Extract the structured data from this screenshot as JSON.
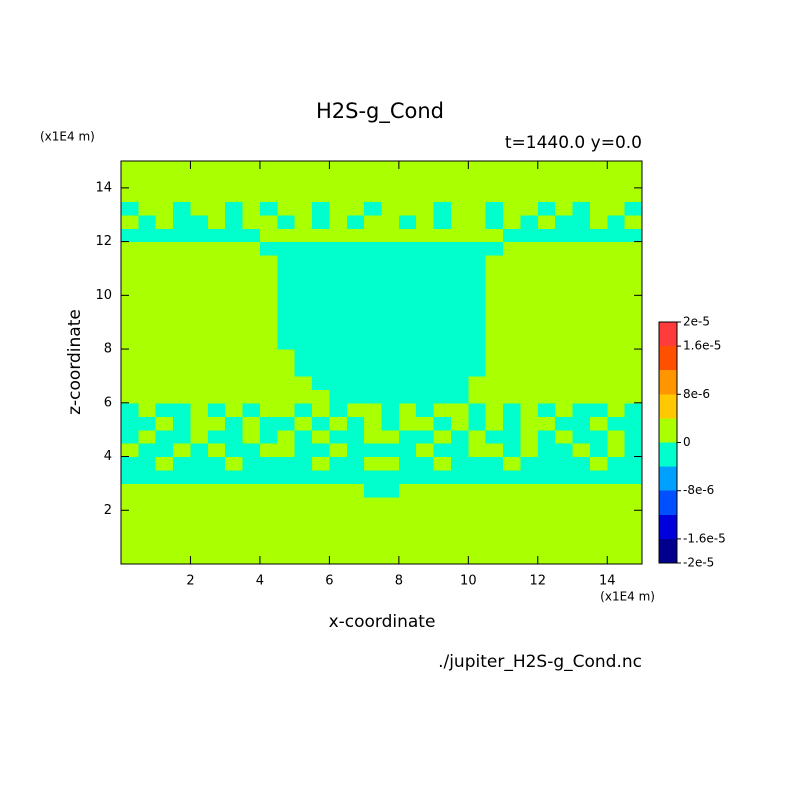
{
  "chart_data": {
    "type": "contour",
    "title": "H2S-g_Cond",
    "subtitle": "t=1440.0 y=0.0",
    "x_label": "x-coordinate",
    "y_label": "z-coordinate",
    "x_unit": "(x1E4 m)",
    "y_unit": "(x1E4 m)",
    "footer": "./jupiter_H2S-g_Cond.nc",
    "xlim": [
      0,
      15
    ],
    "ylim": [
      0,
      15
    ],
    "xticks": [
      2,
      4,
      6,
      8,
      10,
      12,
      14
    ],
    "yticks": [
      2,
      4,
      6,
      8,
      10,
      12,
      14
    ],
    "levels": [
      -2e-05,
      -1.6e-05,
      -1.2e-05,
      -8e-06,
      -4e-06,
      0,
      4e-06,
      8e-06,
      1.2e-05,
      1.6e-05,
      2e-05
    ],
    "colors": [
      "#00008c",
      "#0000dc",
      "#0050ff",
      "#00a0ff",
      "#00ffcc",
      "#aaff00",
      "#ffc800",
      "#ff9600",
      "#ff5000",
      "#ff3c3c"
    ],
    "colorbar_ticks": [
      {
        "value": 2e-05,
        "label": "2e-5"
      },
      {
        "value": 1.6e-05,
        "label": "1.6e-5"
      },
      {
        "value": 8e-06,
        "label": "8e-6"
      },
      0,
      {
        "value": -8e-06,
        "label": "-8e-6"
      },
      {
        "value": -1.6e-05,
        "label": "-1.6e-5"
      },
      {
        "value": -2e-05,
        "label": "-2e-5"
      }
    ],
    "z": [
      [
        0,
        0,
        0,
        0,
        0,
        0,
        0,
        0,
        0,
        0,
        0,
        0,
        0,
        0,
        0,
        0,
        0,
        0,
        0,
        0,
        0,
        0,
        0,
        0,
        0,
        0,
        0,
        0,
        0,
        0
      ],
      [
        0,
        0,
        0,
        0,
        0,
        0,
        0,
        0,
        0,
        0,
        0,
        0,
        0,
        0,
        0,
        0,
        0,
        0,
        0,
        0,
        0,
        0,
        0,
        0,
        0,
        0,
        0,
        0,
        0,
        0
      ],
      [
        0,
        0,
        0,
        0,
        0,
        0,
        0,
        0,
        0,
        0,
        0,
        0,
        0,
        0,
        0,
        0,
        0,
        0,
        0,
        0,
        0,
        0,
        0,
        0,
        0,
        0,
        0,
        0,
        0,
        0
      ],
      [
        0,
        0,
        0,
        0,
        0,
        0,
        0,
        0,
        0,
        0,
        0,
        0,
        0,
        0,
        0,
        0,
        0,
        0,
        0,
        0,
        0,
        0,
        0,
        0,
        0,
        0,
        0,
        0,
        0,
        0
      ],
      [
        0,
        0,
        0,
        0,
        0,
        0,
        0,
        0,
        0,
        0,
        0,
        0,
        0,
        0,
        0,
        0,
        0,
        0,
        0,
        0,
        0,
        0,
        0,
        0,
        0,
        0,
        0,
        0,
        0,
        0
      ],
      [
        0,
        0,
        0,
        0,
        0,
        0,
        0,
        0,
        0,
        0,
        0,
        0,
        0,
        0,
        -2e-06,
        -2e-06,
        0,
        0,
        0,
        0,
        0,
        0,
        0,
        0,
        0,
        0,
        0,
        0,
        0,
        0
      ],
      [
        -2e-06,
        -2e-06,
        -2e-06,
        -2e-06,
        -2e-06,
        -2e-06,
        -2e-06,
        -2e-06,
        -2e-06,
        -2e-06,
        -2e-06,
        -2e-06,
        -2e-06,
        -2e-06,
        -2e-06,
        -2e-06,
        -2e-06,
        -2e-06,
        -2e-06,
        -2e-06,
        -2e-06,
        -2e-06,
        -2e-06,
        -2e-06,
        -2e-06,
        -2e-06,
        -2e-06,
        -2e-06,
        -2e-06,
        -2e-06
      ],
      [
        -2e-06,
        -2e-06,
        0,
        -2e-06,
        -2e-06,
        -2e-06,
        0,
        -2e-06,
        -2e-06,
        -2e-06,
        -2e-06,
        0,
        -2e-06,
        -2e-06,
        0,
        0,
        -2e-06,
        -2e-06,
        0,
        -2e-06,
        -2e-06,
        -2e-06,
        0,
        -2e-06,
        -2e-06,
        -2e-06,
        -2e-06,
        0,
        -2e-06,
        -2e-06
      ],
      [
        0,
        -2e-06,
        -2e-06,
        0,
        -2e-06,
        0,
        -2e-06,
        -2e-06,
        0,
        0,
        -2e-06,
        -2e-06,
        0,
        -2e-06,
        -2e-06,
        -2e-06,
        -2e-06,
        0,
        -2e-06,
        -2e-06,
        0,
        0,
        -2e-06,
        0,
        -2e-06,
        -2e-06,
        0,
        -2e-06,
        0,
        -2e-06
      ],
      [
        -2e-06,
        0,
        -2e-06,
        -2e-06,
        0,
        -2e-06,
        -2e-06,
        0,
        -2e-06,
        0,
        -2e-06,
        0,
        -2e-06,
        -2e-06,
        0,
        0,
        -2e-06,
        -2e-06,
        0,
        -2e-06,
        0,
        -2e-06,
        -2e-06,
        0,
        -2e-06,
        0,
        -2e-06,
        -2e-06,
        0,
        -2e-06
      ],
      [
        -2e-06,
        -2e-06,
        0,
        -2e-06,
        0,
        0,
        -2e-06,
        0,
        -2e-06,
        -2e-06,
        0,
        -2e-06,
        0,
        -2e-06,
        0,
        -2e-06,
        0,
        0,
        -2e-06,
        0,
        -2e-06,
        0,
        -2e-06,
        0,
        0,
        -2e-06,
        -2e-06,
        0,
        -2e-06,
        -2e-06
      ],
      [
        -2e-06,
        0,
        -2e-06,
        -2e-06,
        0,
        -2e-06,
        0,
        -2e-06,
        0,
        0,
        -2e-06,
        0,
        -2e-06,
        0,
        0,
        -2e-06,
        0,
        -2e-06,
        0,
        0,
        -2e-06,
        0,
        -2e-06,
        0,
        -2e-06,
        0,
        -2e-06,
        -2e-06,
        0,
        -2e-06
      ],
      [
        0,
        0,
        0,
        0,
        0,
        0,
        0,
        0,
        0,
        0,
        0,
        0,
        -2e-06,
        -2e-06,
        -2e-06,
        -2e-06,
        -2e-06,
        -2e-06,
        -2e-06,
        -2e-06,
        0,
        0,
        0,
        0,
        0,
        0,
        0,
        0,
        0,
        0
      ],
      [
        0,
        0,
        0,
        0,
        0,
        0,
        0,
        0,
        0,
        0,
        0,
        -2e-06,
        -2e-06,
        -2e-06,
        -2e-06,
        -2e-06,
        -2e-06,
        -2e-06,
        -2e-06,
        -2e-06,
        0,
        0,
        0,
        0,
        0,
        0,
        0,
        0,
        0,
        0
      ],
      [
        0,
        0,
        0,
        0,
        0,
        0,
        0,
        0,
        0,
        0,
        -2e-06,
        -2e-06,
        -2e-06,
        -2e-06,
        -2e-06,
        -2e-06,
        -2e-06,
        -2e-06,
        -2e-06,
        -2e-06,
        -2e-06,
        0,
        0,
        0,
        0,
        0,
        0,
        0,
        0,
        0
      ],
      [
        0,
        0,
        0,
        0,
        0,
        0,
        0,
        0,
        0,
        0,
        -2e-06,
        -2e-06,
        -2e-06,
        -2e-06,
        -2e-06,
        -2e-06,
        -2e-06,
        -2e-06,
        -2e-06,
        -2e-06,
        -2e-06,
        0,
        0,
        0,
        0,
        0,
        0,
        0,
        0,
        0
      ],
      [
        0,
        0,
        0,
        0,
        0,
        0,
        0,
        0,
        0,
        -2e-06,
        -2e-06,
        -2e-06,
        -2e-06,
        -2e-06,
        -2e-06,
        -2e-06,
        -2e-06,
        -2e-06,
        -2e-06,
        -2e-06,
        -2e-06,
        0,
        0,
        0,
        0,
        0,
        0,
        0,
        0,
        0
      ],
      [
        0,
        0,
        0,
        0,
        0,
        0,
        0,
        0,
        0,
        -2e-06,
        -2e-06,
        -2e-06,
        -2e-06,
        -2e-06,
        -2e-06,
        -2e-06,
        -2e-06,
        -2e-06,
        -2e-06,
        -2e-06,
        -2e-06,
        0,
        0,
        0,
        0,
        0,
        0,
        0,
        0,
        0
      ],
      [
        0,
        0,
        0,
        0,
        0,
        0,
        0,
        0,
        0,
        -2e-06,
        -2e-06,
        -2e-06,
        -2e-06,
        -2e-06,
        -2e-06,
        -2e-06,
        -2e-06,
        -2e-06,
        -2e-06,
        -2e-06,
        -2e-06,
        0,
        0,
        0,
        0,
        0,
        0,
        0,
        0,
        0
      ],
      [
        0,
        0,
        0,
        0,
        0,
        0,
        0,
        0,
        0,
        -2e-06,
        -2e-06,
        -2e-06,
        -2e-06,
        -2e-06,
        -2e-06,
        -2e-06,
        -2e-06,
        -2e-06,
        -2e-06,
        -2e-06,
        -2e-06,
        0,
        0,
        0,
        0,
        0,
        0,
        0,
        0,
        0
      ],
      [
        0,
        0,
        0,
        0,
        0,
        0,
        0,
        0,
        0,
        -2e-06,
        -2e-06,
        -2e-06,
        -2e-06,
        -2e-06,
        -2e-06,
        -2e-06,
        -2e-06,
        -2e-06,
        -2e-06,
        -2e-06,
        -2e-06,
        0,
        0,
        0,
        0,
        0,
        0,
        0,
        0,
        0
      ],
      [
        0,
        0,
        0,
        0,
        0,
        0,
        0,
        0,
        0,
        -2e-06,
        -2e-06,
        -2e-06,
        -2e-06,
        -2e-06,
        -2e-06,
        -2e-06,
        -2e-06,
        -2e-06,
        -2e-06,
        -2e-06,
        -2e-06,
        0,
        0,
        0,
        0,
        0,
        0,
        0,
        0,
        0
      ],
      [
        0,
        0,
        0,
        0,
        0,
        0,
        0,
        0,
        0,
        -2e-06,
        -2e-06,
        -2e-06,
        -2e-06,
        -2e-06,
        -2e-06,
        -2e-06,
        -2e-06,
        -2e-06,
        -2e-06,
        -2e-06,
        -2e-06,
        0,
        0,
        0,
        0,
        0,
        0,
        0,
        0,
        0
      ],
      [
        0,
        0,
        0,
        0,
        0,
        0,
        0,
        0,
        -2e-06,
        -2e-06,
        -2e-06,
        -2e-06,
        -2e-06,
        -2e-06,
        -2e-06,
        -2e-06,
        -2e-06,
        -2e-06,
        -2e-06,
        -2e-06,
        -2e-06,
        -2e-06,
        0,
        0,
        0,
        0,
        0,
        0,
        0,
        0
      ],
      [
        -2e-06,
        -2e-06,
        -2e-06,
        -2e-06,
        -2e-06,
        -2e-06,
        -2e-06,
        -2e-06,
        0,
        0,
        0,
        0,
        0,
        0,
        0,
        0,
        0,
        0,
        0,
        0,
        0,
        0,
        -2e-06,
        -2e-06,
        -2e-06,
        -2e-06,
        -2e-06,
        -2e-06,
        -2e-06,
        -2e-06
      ],
      [
        0,
        -2e-06,
        0,
        -2e-06,
        -2e-06,
        0,
        -2e-06,
        0,
        0,
        -2e-06,
        0,
        -2e-06,
        0,
        -2e-06,
        0,
        0,
        -2e-06,
        0,
        -2e-06,
        0,
        0,
        -2e-06,
        0,
        -2e-06,
        0,
        -2e-06,
        -2e-06,
        0,
        -2e-06,
        0
      ],
      [
        -2e-06,
        0,
        0,
        -2e-06,
        0,
        0,
        -2e-06,
        0,
        -2e-06,
        0,
        0,
        -2e-06,
        0,
        0,
        -2e-06,
        0,
        0,
        0,
        -2e-06,
        0,
        0,
        -2e-06,
        0,
        0,
        -2e-06,
        0,
        -2e-06,
        0,
        0,
        -2e-06
      ],
      [
        0,
        0,
        0,
        0,
        0,
        0,
        0,
        0,
        0,
        0,
        0,
        0,
        0,
        0,
        0,
        0,
        0,
        0,
        0,
        0,
        0,
        0,
        0,
        0,
        0,
        0,
        0,
        0,
        0,
        0
      ],
      [
        0,
        0,
        0,
        0,
        0,
        0,
        0,
        0,
        0,
        0,
        0,
        0,
        0,
        0,
        0,
        0,
        0,
        0,
        0,
        0,
        0,
        0,
        0,
        0,
        0,
        0,
        0,
        0,
        0,
        0
      ],
      [
        0,
        0,
        0,
        0,
        0,
        0,
        0,
        0,
        0,
        0,
        0,
        0,
        0,
        0,
        0,
        0,
        0,
        0,
        0,
        0,
        0,
        0,
        0,
        0,
        0,
        0,
        0,
        0,
        0,
        0
      ]
    ]
  }
}
